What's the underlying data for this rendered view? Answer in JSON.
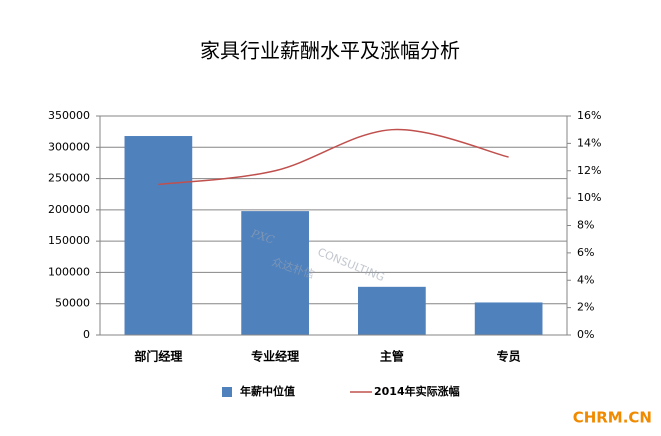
{
  "chart_data": {
    "type": "bar_line",
    "title": "家具行业薪酬水平及涨幅分析",
    "categories": [
      "部门经理",
      "专业经理",
      "主管",
      "专员"
    ],
    "series": [
      {
        "name": "年薪中位值",
        "color": "#4f81bd",
        "values": [
          318000,
          198000,
          77000,
          52000
        ]
      },
      {
        "name": "2014年实际涨幅",
        "color": "#c0504d",
        "axis": "y2",
        "values": [
          11,
          12,
          15,
          13
        ]
      }
    ],
    "ylim": [
      0,
      350000
    ],
    "yticks": [
      0,
      50000,
      100000,
      150000,
      200000,
      250000,
      300000,
      350000
    ],
    "y2lim": [
      0,
      16
    ],
    "y2ticks": [
      {
        "value": 0,
        "label": "0%"
      },
      {
        "value": 2,
        "label": "2%"
      },
      {
        "value": 4,
        "label": "4%"
      },
      {
        "value": 6,
        "label": "6%"
      },
      {
        "value": 8,
        "label": "8%"
      },
      {
        "value": 10,
        "label": "10%"
      },
      {
        "value": 12,
        "label": "12%"
      },
      {
        "value": 14,
        "label": "14%"
      },
      {
        "value": 16,
        "label": "16%"
      }
    ],
    "grid": true,
    "legend": "bottom",
    "watermark": [
      "PXC",
      "CONSULTING",
      "众达朴信"
    ],
    "footer": "CHRM.CN"
  }
}
